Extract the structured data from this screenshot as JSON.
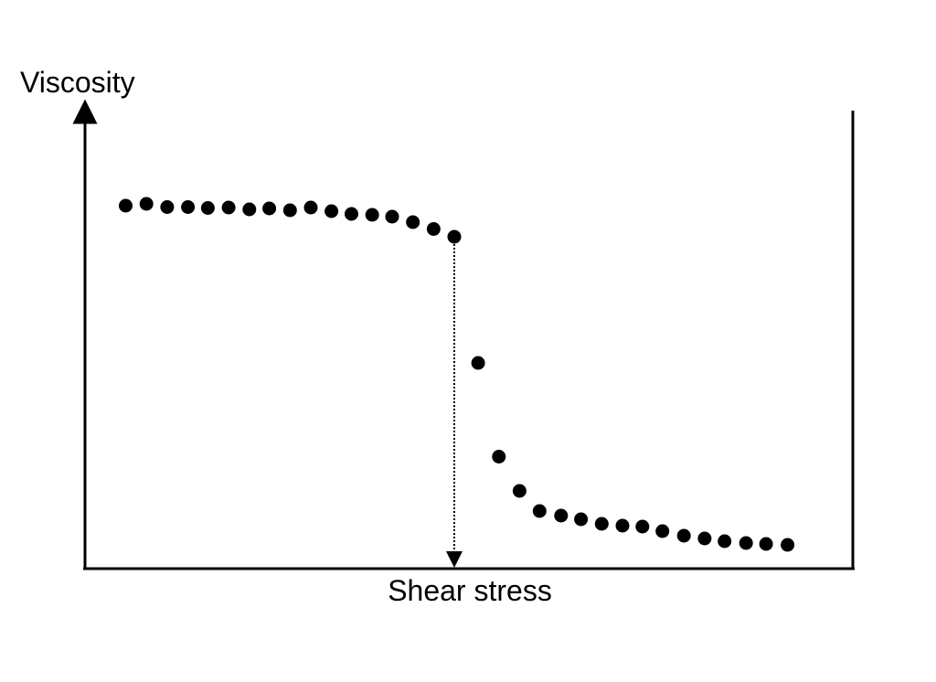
{
  "chart_data": {
    "type": "scatter",
    "title": "",
    "xlabel": "Shear stress",
    "ylabel": "Viscosity",
    "xlim": [
      0,
      100
    ],
    "ylim": [
      0,
      100
    ],
    "grid": false,
    "legend": "none",
    "marker_color": "#000000",
    "axis_color": "#000000",
    "x": [
      5.3,
      8.0,
      10.7,
      13.4,
      16.0,
      18.7,
      21.4,
      24.0,
      26.7,
      29.4,
      32.1,
      34.7,
      37.4,
      40.0,
      42.7,
      45.4,
      48.1,
      51.2,
      53.9,
      56.6,
      59.2,
      62.0,
      64.6,
      67.3,
      70.0,
      72.6,
      75.2,
      78.0,
      80.7,
      83.3,
      86.1,
      88.7,
      91.5
    ],
    "y": [
      79.4,
      79.8,
      79.1,
      79.1,
      78.9,
      79.0,
      78.6,
      78.8,
      78.4,
      79.0,
      78.2,
      77.6,
      77.4,
      77.0,
      75.8,
      74.3,
      72.6,
      45.0,
      24.5,
      17.0,
      12.6,
      11.6,
      10.8,
      9.8,
      9.4,
      9.2,
      8.2,
      7.2,
      6.6,
      6.0,
      5.6,
      5.4,
      5.2
    ],
    "drop_marker": {
      "x": 48.1,
      "y": 72.6,
      "style": "dotted-arrow-to-x-axis"
    }
  }
}
